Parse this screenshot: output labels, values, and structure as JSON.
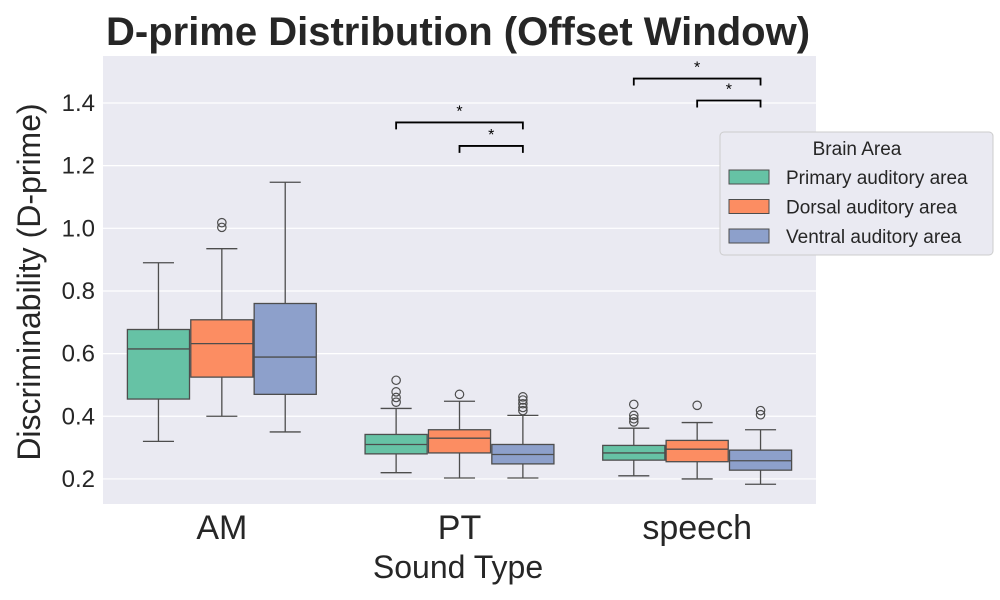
{
  "chart_data": {
    "type": "box",
    "title": "D-prime Distribution (Offset Window)",
    "xlabel": "Sound Type",
    "ylabel": "Discriminability (D-prime)",
    "ylim": [
      0.12,
      1.55
    ],
    "yticks": [
      0.2,
      0.4,
      0.6,
      0.8,
      1.0,
      1.2,
      1.4
    ],
    "ytick_labels": [
      "0.2",
      "0.4",
      "0.6",
      "0.8",
      "1.0",
      "1.2",
      "1.4"
    ],
    "grid": true,
    "categories": [
      "AM",
      "PT",
      "speech"
    ],
    "legend": {
      "title": "Brain Area",
      "placement": "right"
    },
    "series": [
      {
        "name": "Primary auditory area",
        "color": "#66c2a5",
        "boxes": [
          {
            "whislo": 0.32,
            "q1": 0.455,
            "med": 0.615,
            "q3": 0.677,
            "whishi": 0.89,
            "fliers": []
          },
          {
            "whislo": 0.22,
            "q1": 0.28,
            "med": 0.31,
            "q3": 0.342,
            "whishi": 0.425,
            "fliers": [
              0.445,
              0.46,
              0.478,
              0.515
            ]
          },
          {
            "whislo": 0.21,
            "q1": 0.26,
            "med": 0.283,
            "q3": 0.307,
            "whishi": 0.362,
            "fliers": [
              0.382,
              0.392,
              0.403,
              0.438
            ]
          }
        ]
      },
      {
        "name": "Dorsal auditory area",
        "color": "#fc8d62",
        "boxes": [
          {
            "whislo": 0.4,
            "q1": 0.525,
            "med": 0.632,
            "q3": 0.708,
            "whishi": 0.935,
            "fliers": [
              1.003,
              1.018
            ]
          },
          {
            "whislo": 0.203,
            "q1": 0.283,
            "med": 0.33,
            "q3": 0.357,
            "whishi": 0.448,
            "fliers": [
              0.47
            ]
          },
          {
            "whislo": 0.2,
            "q1": 0.255,
            "med": 0.295,
            "q3": 0.323,
            "whishi": 0.38,
            "fliers": [
              0.435
            ]
          }
        ]
      },
      {
        "name": "Ventral auditory area",
        "color": "#8da0cb",
        "boxes": [
          {
            "whislo": 0.35,
            "q1": 0.47,
            "med": 0.589,
            "q3": 0.76,
            "whishi": 1.147,
            "fliers": []
          },
          {
            "whislo": 0.203,
            "q1": 0.248,
            "med": 0.278,
            "q3": 0.31,
            "whishi": 0.403,
            "fliers": [
              0.418,
              0.428,
              0.44,
              0.452,
              0.462
            ]
          },
          {
            "whislo": 0.183,
            "q1": 0.228,
            "med": 0.258,
            "q3": 0.292,
            "whishi": 0.357,
            "fliers": [
              0.405,
              0.418
            ]
          }
        ]
      }
    ],
    "significance": [
      {
        "category": 1,
        "from_series": 0,
        "to_series": 2,
        "y": 1.338,
        "label": "*"
      },
      {
        "category": 1,
        "from_series": 1,
        "to_series": 2,
        "y": 1.263,
        "label": "*"
      },
      {
        "category": 2,
        "from_series": 0,
        "to_series": 2,
        "y": 1.478,
        "label": "*"
      },
      {
        "category": 2,
        "from_series": 1,
        "to_series": 2,
        "y": 1.408,
        "label": "*"
      }
    ]
  }
}
